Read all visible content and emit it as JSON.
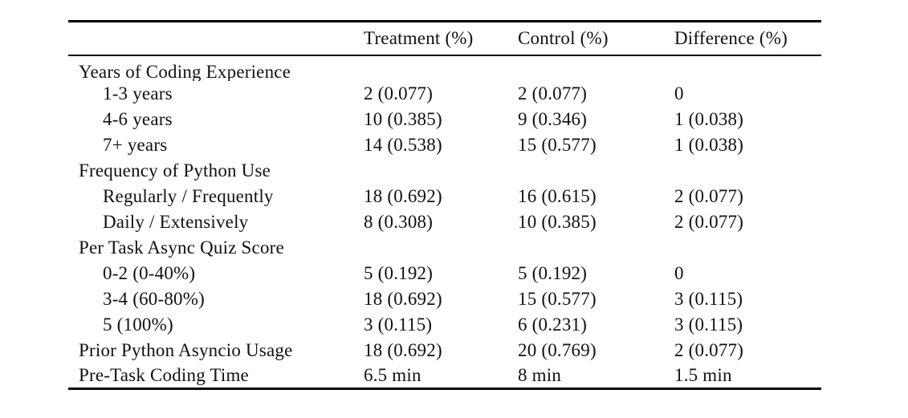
{
  "page": {
    "background": "#ffffff",
    "text_color": "#111111",
    "rule_color": "#000000"
  },
  "table": {
    "header": {
      "col0": "",
      "col1": "Treatment (%)",
      "col2": "Control (%)",
      "col3": "Difference (%)"
    },
    "rows": [
      {
        "label": "Years of Coding Experience",
        "indent": false,
        "treatment": "",
        "control": "",
        "difference": ""
      },
      {
        "label": "1-3 years",
        "indent": true,
        "treatment": "2 (0.077)",
        "control": "2 (0.077)",
        "difference": "0"
      },
      {
        "label": "4-6 years",
        "indent": true,
        "treatment": "10 (0.385)",
        "control": "9 (0.346)",
        "difference": "1 (0.038)"
      },
      {
        "label": "7+ years",
        "indent": true,
        "treatment": "14 (0.538)",
        "control": "15 (0.577)",
        "difference": "1 (0.038)"
      },
      {
        "label": "Frequency of Python Use",
        "indent": false,
        "treatment": "",
        "control": "",
        "difference": ""
      },
      {
        "label": "Regularly / Frequently",
        "indent": true,
        "treatment": "18 (0.692)",
        "control": "16 (0.615)",
        "difference": "2 (0.077)"
      },
      {
        "label": "Daily / Extensively",
        "indent": true,
        "treatment": "8 (0.308)",
        "control": "10 (0.385)",
        "difference": "2 (0.077)"
      },
      {
        "label": "Per Task Async Quiz Score",
        "indent": false,
        "treatment": "",
        "control": "",
        "difference": ""
      },
      {
        "label": "0-2 (0-40%)",
        "indent": true,
        "treatment": "5 (0.192)",
        "control": "5 (0.192)",
        "difference": "0"
      },
      {
        "label": "3-4 (60-80%)",
        "indent": true,
        "treatment": "18 (0.692)",
        "control": "15 (0.577)",
        "difference": "3 (0.115)"
      },
      {
        "label": "5 (100%)",
        "indent": true,
        "treatment": "3 (0.115)",
        "control": "6 (0.231)",
        "difference": "3 (0.115)"
      },
      {
        "label": "Prior Python Asyncio Usage",
        "indent": false,
        "treatment": "18 (0.692)",
        "control": "20 (0.769)",
        "difference": "2 (0.077)"
      },
      {
        "label": "Pre-Task Coding Time",
        "indent": false,
        "treatment": "6.5 min",
        "control": "8 min",
        "difference": "1.5 min"
      }
    ]
  }
}
